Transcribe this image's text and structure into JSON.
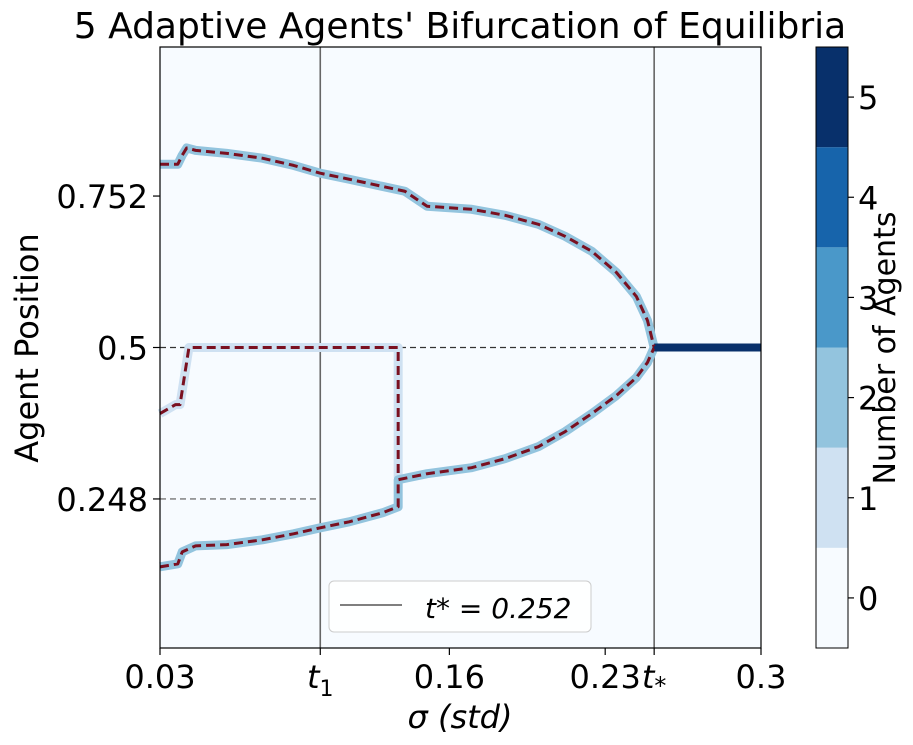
{
  "chart_data": {
    "type": "line",
    "title": "5 Adaptive Agents' Bifurcation of Equilibria",
    "xlabel": "σ (std)",
    "ylabel": "Agent Position",
    "xlim": [
      0.03,
      0.3
    ],
    "ylim": [
      0.0,
      1.0
    ],
    "x_ticks": [
      {
        "value": 0.03,
        "label": "0.03"
      },
      {
        "value": 0.102,
        "label": "t1"
      },
      {
        "value": 0.16,
        "label": "0.16"
      },
      {
        "value": 0.23,
        "label": "0.23"
      },
      {
        "value": 0.252,
        "label": "t*"
      },
      {
        "value": 0.3,
        "label": "0.3"
      }
    ],
    "y_ticks": [
      {
        "value": 0.248,
        "label": "0.248"
      },
      {
        "value": 0.5,
        "label": "0.5"
      },
      {
        "value": 0.752,
        "label": "0.752"
      }
    ],
    "vlines": [
      0.102,
      0.252
    ],
    "hlines": [
      {
        "value": 0.5,
        "xmax": 0.3,
        "style": "dashed",
        "color": "#333333"
      },
      {
        "value": 0.248,
        "xmax": 0.102,
        "style": "dashed",
        "color": "#777777"
      }
    ],
    "legend": {
      "position": "lower-center",
      "entries": [
        "t* = 0.252"
      ]
    },
    "grid": false,
    "background_color": "#f7fbff",
    "colorbar": {
      "label": "Number of Agents",
      "ticks": [
        "0",
        "1",
        "2",
        "3",
        "4",
        "5"
      ],
      "colors": [
        "#f7fbff",
        "#cfe1f2",
        "#93c4de",
        "#4a98c9",
        "#1764ab",
        "#08306b"
      ]
    },
    "series": [
      {
        "style": "dashed",
        "color": "#7a1020",
        "count_color": "#93c4de",
        "x": [
          0.03,
          0.038,
          0.04,
          0.042,
          0.046,
          0.06,
          0.076,
          0.09,
          0.102,
          0.115,
          0.13,
          0.14,
          0.146,
          0.15,
          0.17,
          0.185,
          0.2,
          0.212,
          0.224,
          0.235,
          0.244,
          0.249,
          0.252
        ],
        "y": [
          0.805,
          0.805,
          0.82,
          0.832,
          0.828,
          0.823,
          0.815,
          0.803,
          0.79,
          0.78,
          0.768,
          0.76,
          0.745,
          0.735,
          0.73,
          0.72,
          0.705,
          0.685,
          0.66,
          0.625,
          0.585,
          0.545,
          0.5
        ]
      },
      {
        "style": "dashed",
        "color": "#7a1020",
        "count_color": "#cfe1f2",
        "x": [
          0.03,
          0.037,
          0.039,
          0.043,
          0.06,
          0.09,
          0.102,
          0.12,
          0.137,
          0.137,
          0.137
        ],
        "y": [
          0.39,
          0.405,
          0.405,
          0.5,
          0.5,
          0.5,
          0.5,
          0.5,
          0.5,
          0.3,
          0.283
        ]
      },
      {
        "style": "dashed",
        "color": "#7a1020",
        "count_color": "#93c4de",
        "x": [
          0.03,
          0.038,
          0.04,
          0.046,
          0.06,
          0.076,
          0.09,
          0.102,
          0.115,
          0.13,
          0.137,
          0.137,
          0.15,
          0.17,
          0.185,
          0.2,
          0.212,
          0.224,
          0.235,
          0.244,
          0.249,
          0.252
        ],
        "y": [
          0.135,
          0.14,
          0.16,
          0.17,
          0.172,
          0.18,
          0.19,
          0.2,
          0.21,
          0.225,
          0.235,
          0.28,
          0.29,
          0.3,
          0.315,
          0.335,
          0.36,
          0.39,
          0.42,
          0.45,
          0.475,
          0.5
        ]
      },
      {
        "style": "solid",
        "color": "#08306b",
        "count_color": "#08306b",
        "x": [
          0.252,
          0.3
        ],
        "y": [
          0.5,
          0.5
        ]
      }
    ]
  }
}
